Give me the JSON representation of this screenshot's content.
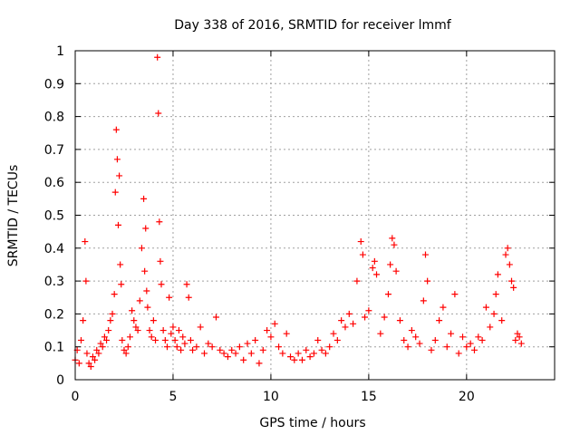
{
  "chart_data": {
    "type": "scatter",
    "title": "Day 338 of 2016, SRMTID for receiver lmmf",
    "xlabel": "GPS time / hours",
    "ylabel": "SRMTID / TECUs",
    "xlim": [
      0,
      24.5
    ],
    "ylim": [
      0,
      1
    ],
    "xticks": [
      0,
      5,
      10,
      15,
      20
    ],
    "yticks": [
      0,
      0.1,
      0.2,
      0.3,
      0.4,
      0.5,
      0.6,
      0.7,
      0.8,
      0.9,
      1
    ],
    "xtick_labels": [
      "0",
      "5",
      "10",
      "15",
      "20"
    ],
    "ytick_labels": [
      "0",
      "0.1",
      "0.2",
      "0.3",
      "0.4",
      "0.5",
      "0.6",
      "0.7",
      "0.8",
      "0.9",
      "1"
    ],
    "grid": true,
    "marker": "+",
    "color": "#ff0000",
    "series": [
      {
        "name": "SRMTID",
        "x": [
          0.0,
          0.1,
          0.2,
          0.3,
          0.4,
          0.5,
          0.55,
          0.6,
          0.7,
          0.8,
          0.9,
          1.0,
          1.1,
          1.2,
          1.3,
          1.4,
          1.5,
          1.6,
          1.7,
          1.8,
          1.9,
          2.0,
          2.05,
          2.1,
          2.15,
          2.2,
          2.25,
          2.3,
          2.35,
          2.4,
          2.5,
          2.6,
          2.7,
          2.8,
          2.9,
          3.0,
          3.1,
          3.2,
          3.3,
          3.4,
          3.5,
          3.55,
          3.6,
          3.65,
          3.7,
          3.8,
          3.9,
          4.0,
          4.1,
          4.2,
          4.25,
          4.3,
          4.35,
          4.4,
          4.5,
          4.6,
          4.7,
          4.8,
          4.9,
          5.0,
          5.1,
          5.2,
          5.3,
          5.4,
          5.5,
          5.6,
          5.7,
          5.8,
          5.9,
          6.0,
          6.2,
          6.4,
          6.6,
          6.8,
          7.0,
          7.2,
          7.4,
          7.6,
          7.8,
          8.0,
          8.2,
          8.4,
          8.6,
          8.8,
          9.0,
          9.2,
          9.4,
          9.6,
          9.8,
          10.0,
          10.2,
          10.4,
          10.6,
          10.8,
          11.0,
          11.2,
          11.4,
          11.6,
          11.8,
          12.0,
          12.2,
          12.4,
          12.6,
          12.8,
          13.0,
          13.2,
          13.4,
          13.6,
          13.8,
          14.0,
          14.2,
          14.4,
          14.6,
          14.7,
          14.8,
          15.0,
          15.2,
          15.3,
          15.4,
          15.6,
          15.8,
          16.0,
          16.1,
          16.2,
          16.3,
          16.4,
          16.6,
          16.8,
          17.0,
          17.2,
          17.4,
          17.6,
          17.8,
          17.9,
          18.0,
          18.2,
          18.4,
          18.6,
          18.8,
          19.0,
          19.2,
          19.4,
          19.6,
          19.8,
          20.0,
          20.2,
          20.4,
          20.6,
          20.8,
          21.0,
          21.2,
          21.4,
          21.5,
          21.6,
          21.8,
          22.0,
          22.1,
          22.2,
          22.3,
          22.4,
          22.5,
          22.6,
          22.7,
          22.8
        ],
        "y": [
          0.06,
          0.09,
          0.05,
          0.12,
          0.18,
          0.42,
          0.3,
          0.08,
          0.05,
          0.04,
          0.07,
          0.06,
          0.09,
          0.08,
          0.11,
          0.1,
          0.13,
          0.12,
          0.15,
          0.18,
          0.2,
          0.26,
          0.57,
          0.76,
          0.67,
          0.47,
          0.62,
          0.35,
          0.29,
          0.12,
          0.09,
          0.08,
          0.1,
          0.13,
          0.21,
          0.18,
          0.16,
          0.15,
          0.24,
          0.4,
          0.55,
          0.33,
          0.46,
          0.27,
          0.22,
          0.15,
          0.13,
          0.18,
          0.12,
          0.98,
          0.81,
          0.48,
          0.36,
          0.29,
          0.15,
          0.12,
          0.1,
          0.25,
          0.14,
          0.16,
          0.12,
          0.1,
          0.15,
          0.09,
          0.13,
          0.11,
          0.29,
          0.25,
          0.12,
          0.09,
          0.1,
          0.16,
          0.08,
          0.11,
          0.1,
          0.19,
          0.09,
          0.08,
          0.07,
          0.09,
          0.08,
          0.1,
          0.06,
          0.11,
          0.08,
          0.12,
          0.05,
          0.09,
          0.15,
          0.13,
          0.17,
          0.1,
          0.08,
          0.14,
          0.07,
          0.06,
          0.08,
          0.06,
          0.09,
          0.07,
          0.08,
          0.12,
          0.09,
          0.08,
          0.1,
          0.14,
          0.12,
          0.18,
          0.16,
          0.2,
          0.17,
          0.3,
          0.42,
          0.38,
          0.19,
          0.21,
          0.34,
          0.36,
          0.32,
          0.14,
          0.19,
          0.26,
          0.35,
          0.43,
          0.41,
          0.33,
          0.18,
          0.12,
          0.1,
          0.15,
          0.13,
          0.11,
          0.24,
          0.38,
          0.3,
          0.09,
          0.12,
          0.18,
          0.22,
          0.1,
          0.14,
          0.26,
          0.08,
          0.13,
          0.1,
          0.11,
          0.09,
          0.13,
          0.12,
          0.22,
          0.16,
          0.2,
          0.26,
          0.32,
          0.18,
          0.38,
          0.4,
          0.35,
          0.3,
          0.28,
          0.12,
          0.14,
          0.13,
          0.11
        ]
      }
    ]
  }
}
